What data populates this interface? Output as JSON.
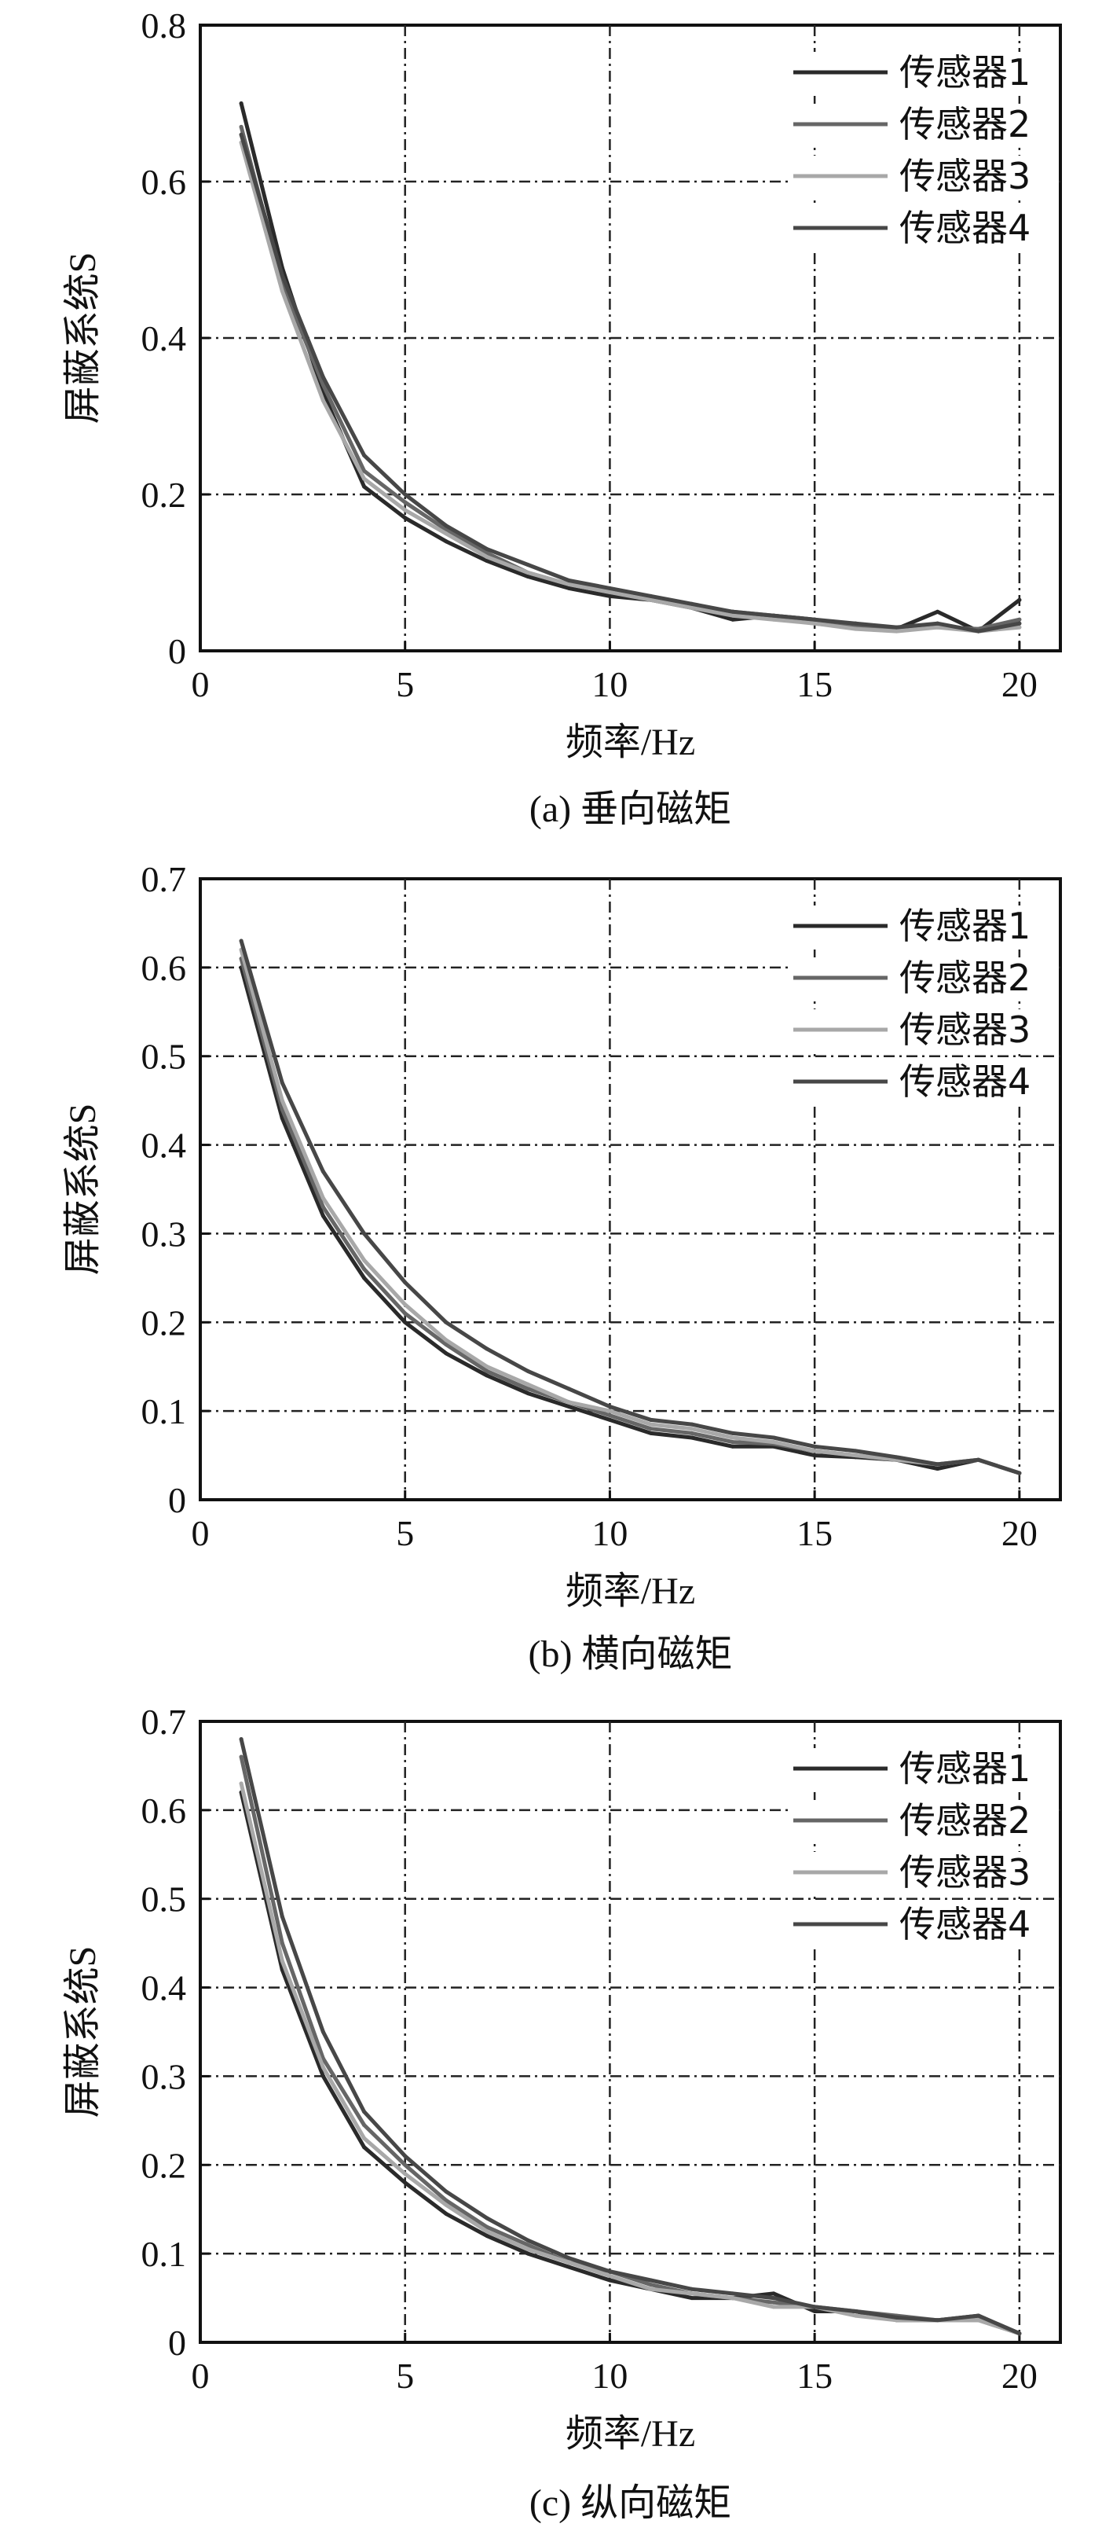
{
  "chart_data": [
    {
      "type": "line",
      "caption": "(a) 垂向磁矩",
      "xlabel": "频率/Hz",
      "ylabel": "屏蔽系统S",
      "xlim": [
        0,
        21
      ],
      "ylim": [
        0,
        0.8
      ],
      "xticks": [
        0,
        5,
        10,
        15,
        20
      ],
      "yticks": [
        0,
        0.2,
        0.4,
        0.6,
        0.8
      ],
      "ytick_labels": [
        "0",
        "0.2",
        "0.4",
        "0.6",
        "0.8"
      ],
      "grid": true,
      "legend_position": "top-right",
      "x": [
        1,
        2,
        3,
        4,
        5,
        6,
        7,
        8,
        9,
        10,
        11,
        12,
        13,
        14,
        15,
        16,
        17,
        18,
        19,
        20
      ],
      "series": [
        {
          "name": "传感器1",
          "color": "#2a2a2a",
          "values": [
            0.7,
            0.49,
            0.33,
            0.21,
            0.17,
            0.14,
            0.115,
            0.095,
            0.08,
            0.07,
            0.065,
            0.055,
            0.04,
            0.045,
            0.04,
            0.03,
            0.028,
            0.05,
            0.025,
            0.065
          ]
        },
        {
          "name": "传感器2",
          "color": "#666666",
          "values": [
            0.67,
            0.47,
            0.34,
            0.23,
            0.19,
            0.155,
            0.125,
            0.1,
            0.085,
            0.075,
            0.068,
            0.058,
            0.05,
            0.045,
            0.035,
            0.03,
            0.03,
            0.03,
            0.028,
            0.04
          ]
        },
        {
          "name": "传感器3",
          "color": "#a8a8a8",
          "values": [
            0.65,
            0.46,
            0.32,
            0.22,
            0.18,
            0.15,
            0.12,
            0.1,
            0.085,
            0.075,
            0.065,
            0.055,
            0.045,
            0.04,
            0.035,
            0.028,
            0.025,
            0.03,
            0.025,
            0.03
          ]
        },
        {
          "name": "传感器4",
          "color": "#474747",
          "values": [
            0.66,
            0.48,
            0.35,
            0.25,
            0.2,
            0.16,
            0.13,
            0.11,
            0.09,
            0.08,
            0.07,
            0.06,
            0.05,
            0.045,
            0.04,
            0.035,
            0.03,
            0.035,
            0.025,
            0.035
          ]
        }
      ]
    },
    {
      "type": "line",
      "caption": "(b) 横向磁矩",
      "xlabel": "频率/Hz",
      "ylabel": "屏蔽系统S",
      "xlim": [
        0,
        21
      ],
      "ylim": [
        0,
        0.7
      ],
      "xticks": [
        0,
        5,
        10,
        15,
        20
      ],
      "yticks": [
        0,
        0.1,
        0.2,
        0.3,
        0.4,
        0.5,
        0.6,
        0.7
      ],
      "ytick_labels": [
        "0",
        "0.1",
        "0.2",
        "0.3",
        "0.4",
        "0.5",
        "0.6",
        "0.7"
      ],
      "grid": true,
      "legend_position": "top-right",
      "x": [
        1,
        2,
        3,
        4,
        5,
        6,
        7,
        8,
        9,
        10,
        11,
        12,
        13,
        14,
        15,
        16,
        17,
        18,
        19,
        20
      ],
      "series": [
        {
          "name": "传感器1",
          "color": "#2a2a2a",
          "values": [
            0.6,
            0.43,
            0.32,
            0.25,
            0.2,
            0.165,
            0.14,
            0.12,
            0.105,
            0.09,
            0.075,
            0.07,
            0.06,
            0.06,
            0.05,
            0.048,
            0.045,
            0.035,
            0.045,
            0.03
          ]
        },
        {
          "name": "传感器2",
          "color": "#666666",
          "values": [
            0.61,
            0.44,
            0.33,
            0.26,
            0.21,
            0.175,
            0.145,
            0.125,
            0.11,
            0.095,
            0.08,
            0.075,
            0.065,
            0.063,
            0.055,
            0.05,
            0.045,
            0.04,
            0.045,
            0.03
          ]
        },
        {
          "name": "传感器3",
          "color": "#a8a8a8",
          "values": [
            0.62,
            0.45,
            0.34,
            0.27,
            0.22,
            0.18,
            0.15,
            0.13,
            0.11,
            0.1,
            0.085,
            0.08,
            0.07,
            0.065,
            0.055,
            0.05,
            0.045,
            0.04,
            0.045,
            0.03
          ]
        },
        {
          "name": "传感器4",
          "color": "#474747",
          "values": [
            0.63,
            0.47,
            0.37,
            0.3,
            0.245,
            0.2,
            0.17,
            0.145,
            0.125,
            0.105,
            0.09,
            0.085,
            0.075,
            0.07,
            0.06,
            0.055,
            0.048,
            0.04,
            0.045,
            0.03
          ]
        }
      ]
    },
    {
      "type": "line",
      "caption": "(c) 纵向磁矩",
      "xlabel": "频率/Hz",
      "ylabel": "屏蔽系统S",
      "xlim": [
        0,
        21
      ],
      "ylim": [
        0,
        0.7
      ],
      "xticks": [
        0,
        5,
        10,
        15,
        20
      ],
      "yticks": [
        0,
        0.1,
        0.2,
        0.3,
        0.4,
        0.5,
        0.6,
        0.7
      ],
      "ytick_labels": [
        "0",
        "0.1",
        "0.2",
        "0.3",
        "0.4",
        "0.5",
        "0.6",
        "0.7"
      ],
      "grid": true,
      "legend_position": "top-right",
      "x": [
        1,
        2,
        3,
        4,
        5,
        6,
        7,
        8,
        9,
        10,
        11,
        12,
        13,
        14,
        15,
        16,
        17,
        18,
        19,
        20
      ],
      "series": [
        {
          "name": "传感器1",
          "color": "#2a2a2a",
          "values": [
            0.62,
            0.42,
            0.3,
            0.22,
            0.18,
            0.145,
            0.12,
            0.1,
            0.085,
            0.07,
            0.06,
            0.05,
            0.05,
            0.055,
            0.035,
            0.035,
            0.025,
            0.025,
            0.03,
            0.01
          ]
        },
        {
          "name": "传感器2",
          "color": "#666666",
          "values": [
            0.66,
            0.45,
            0.32,
            0.245,
            0.2,
            0.16,
            0.13,
            0.11,
            0.09,
            0.08,
            0.065,
            0.055,
            0.05,
            0.045,
            0.04,
            0.035,
            0.03,
            0.025,
            0.025,
            0.01
          ]
        },
        {
          "name": "传感器3",
          "color": "#a8a8a8",
          "values": [
            0.63,
            0.43,
            0.31,
            0.23,
            0.19,
            0.155,
            0.125,
            0.105,
            0.09,
            0.075,
            0.06,
            0.055,
            0.05,
            0.04,
            0.04,
            0.03,
            0.025,
            0.025,
            0.025,
            0.01
          ]
        },
        {
          "name": "传感器4",
          "color": "#474747",
          "values": [
            0.68,
            0.48,
            0.35,
            0.26,
            0.21,
            0.17,
            0.14,
            0.115,
            0.095,
            0.08,
            0.07,
            0.06,
            0.055,
            0.05,
            0.04,
            0.035,
            0.028,
            0.025,
            0.03,
            0.01
          ]
        }
      ]
    }
  ]
}
